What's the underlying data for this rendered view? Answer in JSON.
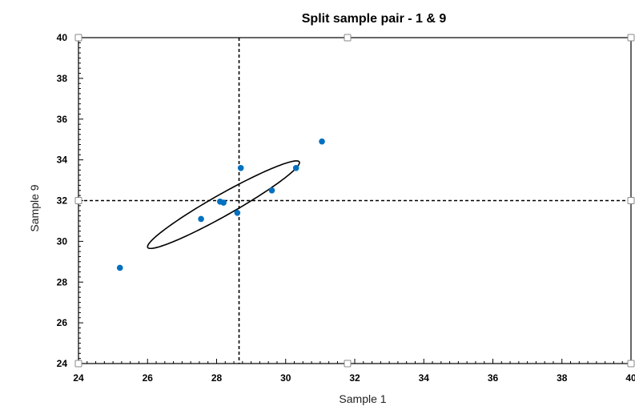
{
  "chart_data": {
    "type": "scatter",
    "title": "Split sample pair - 1 & 9",
    "xlabel": "Sample 1",
    "ylabel": "Sample 9",
    "xlim": [
      24,
      40
    ],
    "ylim": [
      24,
      40
    ],
    "x_ticks": [
      "24",
      "26",
      "28",
      "30",
      "32",
      "34",
      "36",
      "38",
      "40"
    ],
    "y_ticks": [
      "24",
      "26",
      "28",
      "30",
      "32",
      "34",
      "36",
      "38",
      "40"
    ],
    "grid": false,
    "series": [
      {
        "points": [
          {
            "x": 25.2,
            "y": 28.7
          },
          {
            "x": 27.55,
            "y": 31.1
          },
          {
            "x": 28.1,
            "y": 31.95
          },
          {
            "x": 28.2,
            "y": 31.9
          },
          {
            "x": 28.6,
            "y": 31.4
          },
          {
            "x": 28.7,
            "y": 33.6
          },
          {
            "x": 29.6,
            "y": 32.5
          },
          {
            "x": 30.3,
            "y": 33.6
          },
          {
            "x": 31.05,
            "y": 34.9
          }
        ],
        "color": "#0070C0"
      }
    ],
    "reference_lines": {
      "vertical_x": 28.65,
      "horizontal_y": 32.0
    },
    "ellipse": {
      "center": {
        "x": 28.2,
        "y": 31.8
      },
      "semi_axis_x": 2.2,
      "semi_axis_y": 2.15,
      "correlation_like": 0.96
    },
    "colors": {
      "points": "#0070C0",
      "lines": "#000000"
    }
  }
}
